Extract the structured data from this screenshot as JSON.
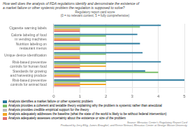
{
  "chart_data": {
    "type": "bar",
    "orientation": "horizontal",
    "title": "How well does the analysis of FDA regulations identify and demonstrate the existence of\na market failure or other systemic problem the regulation is supposed to solve?",
    "subtitle": "Regulatory report card score\n(0 = no relevant context; 5 = fully comprehensive)",
    "categories": [
      "Cigarette warning labels",
      "Calorie labeling of food\nin vending machines",
      "Nutrition labeling on\nrestaurant menus",
      "Unique device identification",
      "Risk-based preventive\ncontrols for human food",
      "Standards for growing\nand harvesting produce",
      "Risk-based preventive\ncontrols for animal food"
    ],
    "series": [
      {
        "name": "Analysis identifies a market failure or other systemic problem",
        "color": "#2B7A9E",
        "values": [
          4.1,
          3.2,
          3.3,
          3.4,
          4.1,
          3.5,
          5.0
        ]
      },
      {
        "name": "Analysis provides a coherent and testable theory explaining why the problem is systemic rather than anecdotal",
        "color": "#7CBF6A",
        "values": [
          3.3,
          2.0,
          2.0,
          2.0,
          2.0,
          4.0,
          2.0
        ]
      },
      {
        "name": "Analysis provides credible empirical support for the theory",
        "color": "#BBBBBB",
        "values": [
          1.0,
          1.0,
          1.0,
          1.0,
          1.0,
          1.0,
          1.0
        ]
      },
      {
        "name": "Analysis adequately addresses the baseline (what the state of the world is likely to be without federal intervention)",
        "color": "#F5A623",
        "values": [
          1.0,
          1.0,
          1.0,
          1.0,
          2.0,
          1.0,
          2.0
        ]
      },
      {
        "name": "Analysis adequately assesses uncertainty about the existence or size of the problem",
        "color": "#E07070",
        "values": [
          1.0,
          1.0,
          1.0,
          1.0,
          1.0,
          1.0,
          1.0
        ]
      }
    ],
    "xlim": [
      0,
      5
    ],
    "xticks": [
      0,
      1,
      2,
      3,
      4,
      5
    ],
    "grid": true,
    "legend": "bottom",
    "source": "Source: Mercatus Center's Regulatory Report Card\nProduced by Jerry Ellig, James Broughel, and Reeve Neinast, Mercatus Center at George Mason University"
  }
}
